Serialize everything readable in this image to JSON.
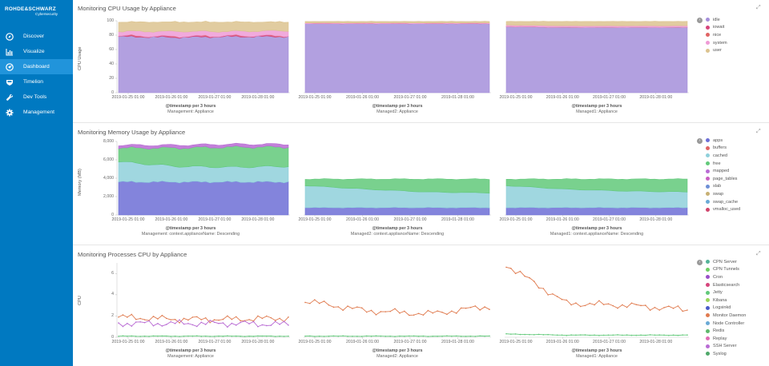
{
  "brand": {
    "name": "ROHDE&SCHWARZ",
    "sub": "Cybersecurity"
  },
  "nav": [
    {
      "id": "discover",
      "label": "Discover",
      "icon": "compass-icon",
      "active": false
    },
    {
      "id": "visualize",
      "label": "Visualize",
      "icon": "bar-chart-icon",
      "active": false
    },
    {
      "id": "dashboard",
      "label": "Dashboard",
      "icon": "dashboard-icon",
      "active": true
    },
    {
      "id": "timelion",
      "label": "Timelion",
      "icon": "shield-icon",
      "active": false
    },
    {
      "id": "devtools",
      "label": "Dev Tools",
      "icon": "wrench-icon",
      "active": false
    },
    {
      "id": "management",
      "label": "Management",
      "icon": "gear-icon",
      "active": false
    }
  ],
  "colors": {
    "sidebar": "#0079c1",
    "active": "#2194db",
    "idle": "#a58fdb",
    "iowait": "#d6457c",
    "nice": "#e06464",
    "system": "#ef9bd6",
    "user": "#dcc38f",
    "apps": "#9aa3df",
    "buffers": "#e06464",
    "cached": "#8fd0db",
    "free": "#8ed6a0",
    "mapped": "#b96bd4",
    "page_tables": "#c95fc2",
    "slab": "#6d8fd6",
    "swap": "#c7b074",
    "swap_cache": "#6aaad6",
    "vmalloc_used": "#d0456c"
  },
  "panels": {
    "cpu": {
      "title": "Monitoring CPU Usage by Appliance",
      "ylabel": "CPU Usage",
      "yticks": [
        "100",
        "80",
        "60",
        "40",
        "20",
        "0"
      ],
      "xticks": [
        "2019-01-25 01:00",
        "2019-01-26 01:00",
        "2019-01-27 01:00",
        "2019-01-28 01:00"
      ],
      "xlabel": "@timestamp per 3 hours",
      "charts": [
        "Management: Appliance",
        "Managed2: Appliance",
        "Managed1: Appliance"
      ],
      "legend": [
        {
          "label": "idle",
          "color": "#a58fdb"
        },
        {
          "label": "iowait",
          "color": "#d6457c"
        },
        {
          "label": "nice",
          "color": "#e06464"
        },
        {
          "label": "system",
          "color": "#ef9bd6"
        },
        {
          "label": "user",
          "color": "#dcc38f"
        }
      ]
    },
    "memory": {
      "title": "Monitoring Memory Usage by Appliance",
      "ylabel": "Memory (MB)",
      "yticks": [
        "8,000",
        "6,000",
        "4,000",
        "2,000",
        "0"
      ],
      "xticks": [
        "2019-01-25 01:00",
        "2019-01-26 01:00",
        "2019-01-27 01:00",
        "2019-01-28 01:00"
      ],
      "xlabel": "@timestamp per 3 hours",
      "charts": [
        "Management: context.applianceName: Descending",
        "Managed2: context.applianceName: Descending",
        "Managed1: context.applianceName: Descending"
      ],
      "legend": [
        {
          "label": "apps",
          "color": "#6d6fd6"
        },
        {
          "label": "buffers",
          "color": "#e06464"
        },
        {
          "label": "cached",
          "color": "#8fd0db"
        },
        {
          "label": "free",
          "color": "#62c97a"
        },
        {
          "label": "mapped",
          "color": "#b96bd4"
        },
        {
          "label": "page_tables",
          "color": "#c95fc2"
        },
        {
          "label": "slab",
          "color": "#6d8fd6"
        },
        {
          "label": "swap",
          "color": "#c7b074"
        },
        {
          "label": "swap_cache",
          "color": "#6aaad6"
        },
        {
          "label": "vmalloc_used",
          "color": "#d0456c"
        }
      ]
    },
    "processes": {
      "title": "Monitoring Processes CPU by Appliance",
      "ylabel": "CPU",
      "yticks": [
        "6",
        "4",
        "2",
        "0"
      ],
      "xticks": [
        "2019-01-25 01:00",
        "2019-01-26 01:00",
        "2019-01-27 01:00",
        "2019-01-28 01:00"
      ],
      "xlabel": "@timestamp per 3 hours",
      "charts": [
        "Management: Appliance",
        "Managed2: Appliance",
        "Managed1: Appliance"
      ],
      "legend": [
        {
          "label": "CPN Server",
          "color": "#54b399"
        },
        {
          "label": "CPN Tunnels",
          "color": "#6fcf62"
        },
        {
          "label": "Cron",
          "color": "#9a4fc9"
        },
        {
          "label": "Elasticsearch",
          "color": "#d6457c"
        },
        {
          "label": "Jetty",
          "color": "#62c97a"
        },
        {
          "label": "Kibana",
          "color": "#9bd65a"
        },
        {
          "label": "Logsinkd",
          "color": "#4a5bc9"
        },
        {
          "label": "Monitor Daemon",
          "color": "#e07b4f"
        },
        {
          "label": "Node Controller",
          "color": "#6aaad6"
        },
        {
          "label": "Redis",
          "color": "#5fb86b"
        },
        {
          "label": "Replay",
          "color": "#e06ab4"
        },
        {
          "label": "SSH Server",
          "color": "#b96bd4"
        },
        {
          "label": "Syslog",
          "color": "#4fa86a"
        }
      ]
    }
  },
  "chart_data": [
    {
      "type": "area",
      "title": "Monitoring CPU Usage by Appliance",
      "ylabel": "CPU Usage",
      "xlabel": "@timestamp per 3 hours",
      "ylim": [
        0,
        100
      ],
      "x": [
        "2019-01-25 01:00",
        "2019-01-26 01:00",
        "2019-01-27 01:00",
        "2019-01-28 01:00"
      ],
      "panels": [
        {
          "name": "Management: Appliance",
          "series": [
            {
              "name": "idle",
              "values": [
                78,
                77,
                78,
                78
              ]
            },
            {
              "name": "iowait",
              "values": [
                1,
                1,
                1,
                1
              ]
            },
            {
              "name": "nice",
              "values": [
                0,
                0,
                0,
                0
              ]
            },
            {
              "name": "system",
              "values": [
                6,
                7,
                6,
                7
              ]
            },
            {
              "name": "user",
              "values": [
                13,
                13,
                13,
                12
              ]
            }
          ]
        },
        {
          "name": "Managed2: Appliance",
          "series": [
            {
              "name": "idle",
              "values": [
                96,
                96,
                96,
                96
              ]
            },
            {
              "name": "iowait",
              "values": [
                0,
                0,
                0,
                0
              ]
            },
            {
              "name": "nice",
              "values": [
                0,
                0,
                0,
                0
              ]
            },
            {
              "name": "system",
              "values": [
                1,
                1,
                1,
                1
              ]
            },
            {
              "name": "user",
              "values": [
                2,
                2,
                2,
                2
              ]
            }
          ]
        },
        {
          "name": "Managed1: Appliance",
          "series": [
            {
              "name": "idle",
              "values": [
                92,
                91,
                91,
                91
              ]
            },
            {
              "name": "iowait",
              "values": [
                0,
                0,
                0,
                0
              ]
            },
            {
              "name": "nice",
              "values": [
                0,
                0,
                0,
                0
              ]
            },
            {
              "name": "system",
              "values": [
                2,
                2,
                2,
                2
              ]
            },
            {
              "name": "user",
              "values": [
                5,
                6,
                6,
                6
              ]
            }
          ]
        }
      ]
    },
    {
      "type": "area",
      "title": "Monitoring Memory Usage by Appliance",
      "ylabel": "Memory (MB)",
      "xlabel": "@timestamp per 3 hours",
      "ylim": [
        0,
        8000
      ],
      "x": [
        "2019-01-25 01:00",
        "2019-01-26 01:00",
        "2019-01-27 01:00",
        "2019-01-28 01:00"
      ],
      "panels": [
        {
          "name": "Management: context.applianceName: Descending",
          "series": [
            {
              "name": "apps",
              "values": [
                3600,
                3600,
                3600,
                3600
              ]
            },
            {
              "name": "cached",
              "values": [
                2200,
                1700,
                1600,
                1700
              ]
            },
            {
              "name": "free",
              "values": [
                1500,
                2000,
                2200,
                2100
              ]
            },
            {
              "name": "mapped",
              "values": [
                300,
                300,
                300,
                300
              ]
            }
          ]
        },
        {
          "name": "Managed2: context.applianceName: Descending",
          "series": [
            {
              "name": "apps",
              "values": [
                800,
                800,
                800,
                800
              ]
            },
            {
              "name": "cached",
              "values": [
                2400,
                2000,
                1700,
                1600
              ]
            },
            {
              "name": "free",
              "values": [
                700,
                1100,
                1400,
                1500
              ]
            }
          ]
        },
        {
          "name": "Managed1: context.applianceName: Descending",
          "series": [
            {
              "name": "apps",
              "values": [
                800,
                800,
                800,
                800
              ]
            },
            {
              "name": "cached",
              "values": [
                2400,
                2000,
                1800,
                1700
              ]
            },
            {
              "name": "free",
              "values": [
                700,
                1100,
                1300,
                1400
              ]
            }
          ]
        }
      ]
    },
    {
      "type": "line",
      "title": "Monitoring Processes CPU by Appliance",
      "ylabel": "CPU",
      "xlabel": "@timestamp per 3 hours",
      "ylim": [
        0,
        7
      ],
      "x": [
        "2019-01-25 01:00",
        "2019-01-26 01:00",
        "2019-01-27 01:00",
        "2019-01-28 01:00"
      ],
      "panels": [
        {
          "name": "Management: Appliance",
          "series": [
            {
              "name": "Monitor Daemon",
              "values": [
                1.9,
                1.7,
                1.7,
                1.8
              ]
            },
            {
              "name": "SSH Server",
              "values": [
                1.3,
                1.3,
                1.3,
                1.2
              ]
            },
            {
              "name": "Jetty",
              "values": [
                0.1,
                0.1,
                0.1,
                0.1
              ]
            }
          ]
        },
        {
          "name": "Managed2: Appliance",
          "series": [
            {
              "name": "Monitor Daemon",
              "values": [
                3.4,
                2.5,
                2.2,
                2.9
              ]
            },
            {
              "name": "Jetty",
              "values": [
                0.1,
                0.1,
                0.1,
                0.1
              ]
            }
          ]
        },
        {
          "name": "Managed1: Appliance",
          "series": [
            {
              "name": "Monitor Daemon",
              "values": [
                6.8,
                3.2,
                3.0,
                2.6
              ]
            },
            {
              "name": "Jetty",
              "values": [
                0.3,
                0.2,
                0.2,
                0.2
              ]
            }
          ]
        }
      ]
    }
  ]
}
